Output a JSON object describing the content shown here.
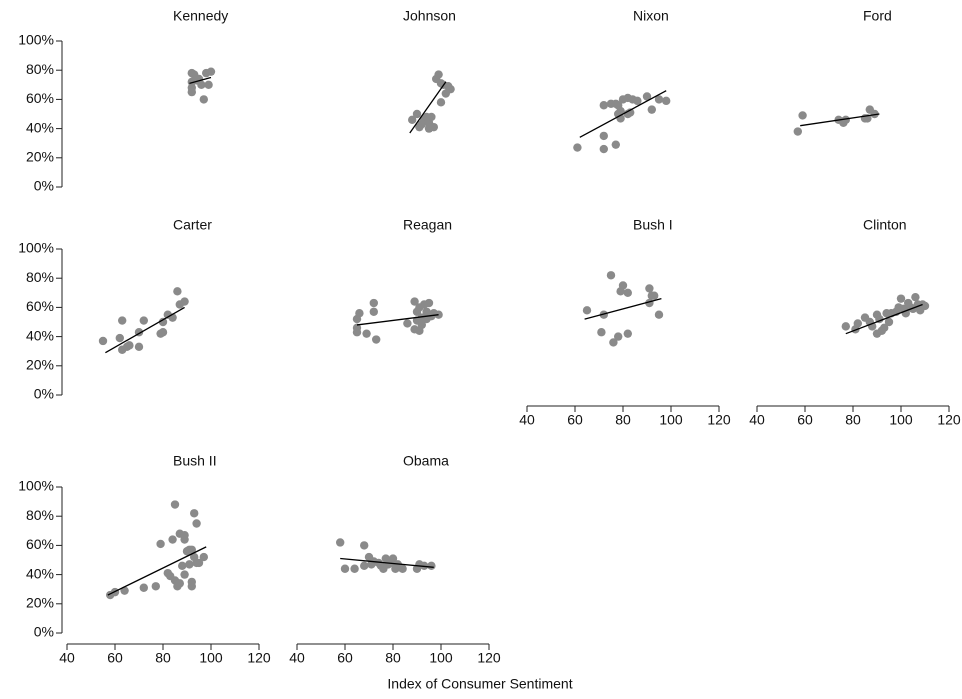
{
  "x_label": "Index of Consumer Sentiment",
  "chart_data": [
    {
      "type": "scatter",
      "title": "Kennedy",
      "color": "#8a8a8a",
      "xlim": [
        40,
        120
      ],
      "ylim": [
        0,
        100
      ],
      "yticks": [
        {
          "value": 0,
          "label": "0%"
        },
        {
          "value": 20,
          "label": "20%"
        },
        {
          "value": 40,
          "label": "40%"
        },
        {
          "value": 60,
          "label": "60%"
        },
        {
          "value": 80,
          "label": "80%"
        },
        {
          "value": 100,
          "label": "100%"
        }
      ],
      "x": [
        92,
        93,
        95,
        92,
        98,
        100,
        92,
        92,
        96,
        99,
        97,
        94
      ],
      "y": [
        78,
        77,
        74,
        72,
        78,
        79,
        68,
        65,
        70,
        70,
        60,
        73
      ],
      "trend_line": {
        "x": [
          91,
          100
        ],
        "y": [
          71,
          75
        ]
      }
    },
    {
      "type": "scatter",
      "title": "Johnson",
      "color": "#8a8a8a",
      "xlim": [
        40,
        120
      ],
      "ylim": [
        0,
        100
      ],
      "x": [
        88,
        90,
        91,
        92,
        93,
        94,
        95,
        96,
        97,
        98,
        99,
        100,
        101,
        102,
        103,
        104,
        100,
        95
      ],
      "y": [
        46,
        50,
        41,
        43,
        46,
        48,
        44,
        48,
        41,
        74,
        77,
        71,
        70,
        64,
        69,
        67,
        58,
        40
      ],
      "trend_line": {
        "x": [
          87,
          102
        ],
        "y": [
          37,
          72
        ]
      }
    },
    {
      "type": "scatter",
      "title": "Nixon",
      "color": "#8a8a8a",
      "xlim": [
        40,
        120
      ],
      "ylim": [
        0,
        100
      ],
      "x": [
        61,
        72,
        72,
        77,
        72,
        75,
        77,
        78,
        78,
        79,
        80,
        82,
        82,
        84,
        86,
        90,
        92,
        95,
        98,
        79,
        83
      ],
      "y": [
        27,
        26,
        35,
        29,
        56,
        57,
        57,
        56,
        50,
        52,
        60,
        61,
        50,
        60,
        59,
        62,
        53,
        60,
        59,
        47,
        51
      ],
      "trend_line": {
        "x": [
          62,
          98
        ],
        "y": [
          34,
          66
        ]
      }
    },
    {
      "type": "scatter",
      "title": "Ford",
      "color": "#8a8a8a",
      "xlim": [
        40,
        120
      ],
      "ylim": [
        0,
        100
      ],
      "x": [
        57,
        59,
        74,
        76,
        77,
        85,
        86,
        87,
        89,
        76
      ],
      "y": [
        38,
        49,
        46,
        45,
        46,
        47,
        47,
        53,
        50,
        44
      ],
      "trend_line": {
        "x": [
          58,
          91
        ],
        "y": [
          42,
          50
        ]
      }
    },
    {
      "type": "scatter",
      "title": "Carter",
      "color": "#8a8a8a",
      "xlim": [
        40,
        120
      ],
      "ylim": [
        0,
        100
      ],
      "yticks": [
        {
          "value": 0,
          "label": "0%"
        },
        {
          "value": 20,
          "label": "20%"
        },
        {
          "value": 40,
          "label": "40%"
        },
        {
          "value": 60,
          "label": "60%"
        },
        {
          "value": 80,
          "label": "80%"
        },
        {
          "value": 100,
          "label": "100%"
        }
      ],
      "x": [
        55,
        62,
        63,
        63,
        65,
        66,
        70,
        70,
        72,
        79,
        80,
        80,
        82,
        84,
        86,
        87,
        89
      ],
      "y": [
        37,
        39,
        51,
        31,
        33,
        34,
        33,
        43,
        51,
        42,
        43,
        50,
        55,
        53,
        71,
        62,
        64
      ],
      "trend_line": {
        "x": [
          56,
          89
        ],
        "y": [
          29,
          60
        ]
      }
    },
    {
      "type": "scatter",
      "title": "Reagan",
      "color": "#8a8a8a",
      "xlim": [
        40,
        120
      ],
      "ylim": [
        0,
        100
      ],
      "x": [
        65,
        65,
        65,
        66,
        69,
        72,
        72,
        73,
        86,
        89,
        89,
        90,
        90,
        91,
        92,
        92,
        93,
        94,
        94,
        95,
        96,
        97,
        99,
        91
      ],
      "y": [
        52,
        46,
        43,
        56,
        42,
        63,
        57,
        38,
        49,
        64,
        45,
        51,
        57,
        60,
        48,
        53,
        62,
        57,
        52,
        63,
        54,
        56,
        55,
        44
      ],
      "trend_line": {
        "x": [
          65,
          99
        ],
        "y": [
          48,
          55
        ]
      }
    },
    {
      "type": "scatter",
      "title": "Bush I",
      "color": "#8a8a8a",
      "xlim": [
        40,
        120
      ],
      "ylim": [
        0,
        100
      ],
      "xticks": [
        40,
        60,
        80,
        100,
        120
      ],
      "x": [
        65,
        71,
        72,
        76,
        75,
        78,
        79,
        80,
        82,
        82,
        91,
        91,
        92,
        93,
        95
      ],
      "y": [
        58,
        43,
        55,
        36,
        82,
        40,
        71,
        75,
        70,
        42,
        73,
        63,
        68,
        68,
        55
      ],
      "trend_line": {
        "x": [
          64,
          96
        ],
        "y": [
          52,
          66
        ]
      }
    },
    {
      "type": "scatter",
      "title": "Clinton",
      "color": "#8a8a8a",
      "xlim": [
        40,
        120
      ],
      "ylim": [
        0,
        100
      ],
      "xticks": [
        40,
        60,
        80,
        100,
        120
      ],
      "x": [
        77,
        81,
        82,
        85,
        87,
        88,
        90,
        90,
        91,
        92,
        93,
        94,
        95,
        96,
        98,
        99,
        100,
        101,
        102,
        103,
        104,
        105,
        106,
        107,
        108,
        109,
        110
      ],
      "y": [
        47,
        45,
        49,
        53,
        50,
        47,
        55,
        42,
        52,
        44,
        46,
        56,
        50,
        56,
        57,
        60,
        66,
        59,
        56,
        63,
        60,
        59,
        67,
        62,
        58,
        62,
        61
      ],
      "trend_line": {
        "x": [
          77,
          109
        ],
        "y": [
          42,
          62
        ]
      }
    },
    {
      "type": "scatter",
      "title": "Bush II",
      "color": "#8a8a8a",
      "xlim": [
        40,
        120
      ],
      "ylim": [
        0,
        100
      ],
      "xticks": [
        40,
        60,
        80,
        100,
        120
      ],
      "yticks": [
        {
          "value": 0,
          "label": "0%"
        },
        {
          "value": 20,
          "label": "20%"
        },
        {
          "value": 40,
          "label": "40%"
        },
        {
          "value": 60,
          "label": "60%"
        },
        {
          "value": 80,
          "label": "80%"
        },
        {
          "value": 100,
          "label": "100%"
        }
      ],
      "x": [
        58,
        60,
        64,
        72,
        77,
        79,
        82,
        83,
        84,
        85,
        85,
        86,
        87,
        87,
        88,
        89,
        89,
        89,
        90,
        91,
        91,
        92,
        92,
        93,
        93,
        94,
        94,
        95,
        97,
        92
      ],
      "y": [
        26,
        28,
        29,
        31,
        32,
        61,
        41,
        39,
        64,
        88,
        36,
        32,
        34,
        68,
        46,
        67,
        40,
        64,
        56,
        47,
        57,
        35,
        32,
        82,
        52,
        48,
        75,
        48,
        52,
        57
      ],
      "trend_line": {
        "x": [
          57,
          98
        ],
        "y": [
          26,
          59
        ]
      }
    },
    {
      "type": "scatter",
      "title": "Obama",
      "color": "#8a8a8a",
      "xlim": [
        40,
        120
      ],
      "ylim": [
        0,
        100
      ],
      "xticks": [
        40,
        60,
        80,
        100,
        120
      ],
      "x": [
        58,
        60,
        64,
        68,
        68,
        70,
        71,
        72,
        74,
        75,
        76,
        77,
        78,
        79,
        80,
        81,
        82,
        83,
        84,
        90,
        91,
        93,
        96
      ],
      "y": [
        62,
        44,
        44,
        60,
        46,
        52,
        47,
        49,
        48,
        46,
        44,
        51,
        47,
        48,
        51,
        44,
        47,
        45,
        44,
        44,
        47,
        46,
        46
      ],
      "trend_line": {
        "x": [
          58,
          97
        ],
        "y": [
          51,
          45
        ]
      }
    }
  ]
}
